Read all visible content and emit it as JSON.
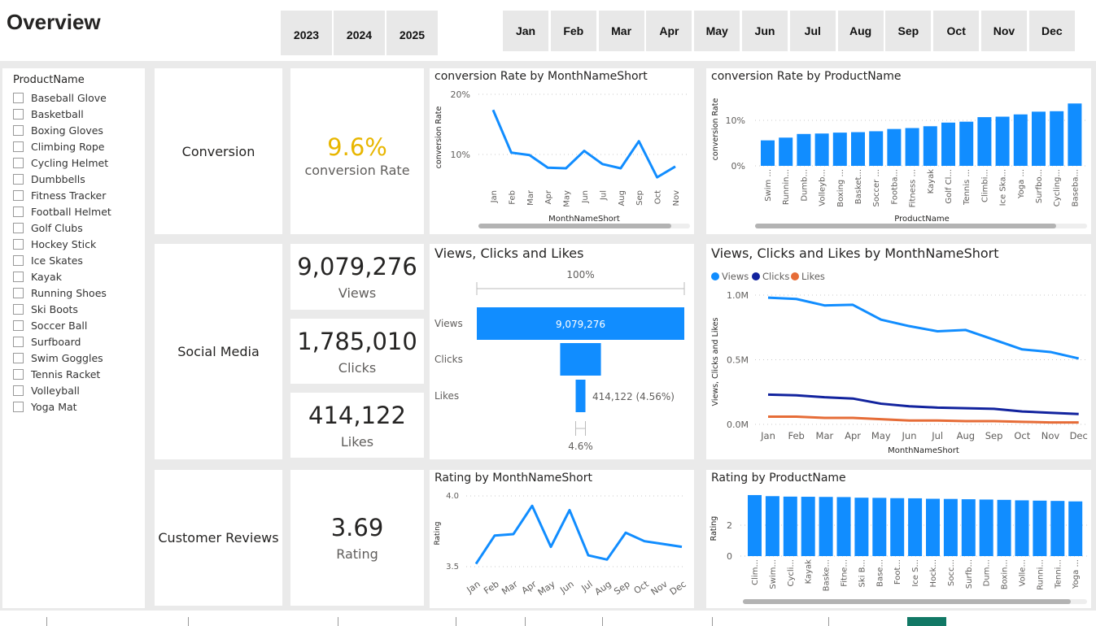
{
  "header": {
    "title": "Overview",
    "years": [
      "2023",
      "2024",
      "2025"
    ],
    "months": [
      "Jan",
      "Feb",
      "Mar",
      "Apr",
      "May",
      "Jun",
      "Jul",
      "Aug",
      "Sep",
      "Oct",
      "Nov",
      "Dec"
    ]
  },
  "slicer": {
    "title": "ProductName",
    "items": [
      "Baseball Glove",
      "Basketball",
      "Boxing Gloves",
      "Climbing Rope",
      "Cycling Helmet",
      "Dumbbells",
      "Fitness Tracker",
      "Football Helmet",
      "Golf Clubs",
      "Hockey Stick",
      "Ice Skates",
      "Kayak",
      "Running Shoes",
      "Ski Boots",
      "Soccer Ball",
      "Surfboard",
      "Swim Goggles",
      "Tennis Racket",
      "Volleyball",
      "Yoga Mat"
    ]
  },
  "sections": {
    "conversion": "Conversion",
    "social": "Social Media",
    "reviews": "Customer Reviews"
  },
  "kpis": {
    "conversion": {
      "value": "9.6%",
      "label": "conversion Rate",
      "color": "#E8B600"
    },
    "views": {
      "value": "9,079,276",
      "label": "Views"
    },
    "clicks": {
      "value": "1,785,010",
      "label": "Clicks"
    },
    "likes": {
      "value": "414,122",
      "label": "Likes"
    },
    "rating": {
      "value": "3.69",
      "label": "Rating"
    }
  },
  "colors": {
    "primary": "#118DFF",
    "clicks": "#12239E",
    "likes": "#E66C37"
  },
  "chart_data": [
    {
      "id": "conv_month",
      "type": "line",
      "title": "conversion Rate by MonthNameShort",
      "xlabel": "MonthNameShort",
      "ylabel": "conversion Rate",
      "yticks": [
        "10%",
        "20%"
      ],
      "ylim": [
        0,
        20
      ],
      "categories": [
        "Jan",
        "Feb",
        "Mar",
        "Apr",
        "May",
        "Jun",
        "Jul",
        "Aug",
        "Sep",
        "Oct",
        "Nov"
      ],
      "values": [
        17.4,
        10.3,
        9.9,
        7.8,
        7.7,
        10.6,
        8.4,
        7.7,
        12.2,
        6.2,
        8.0
      ]
    },
    {
      "id": "conv_product",
      "type": "bar",
      "title": "conversion Rate by ProductName",
      "xlabel": "ProductName",
      "ylabel": "conversion Rate",
      "yticks": [
        "0%",
        "10%"
      ],
      "categories": [
        "Swim ...",
        "Runnin...",
        "Dumb...",
        "Volleyb...",
        "Boxing ...",
        "Basket...",
        "Soccer ...",
        "Footba...",
        "Fitness ...",
        "Kayak",
        "Golf Cl...",
        "Tennis ...",
        "Climbi...",
        "Ice Ska...",
        "Yoga ...",
        "Surfbo...",
        "Cycling...",
        "Baseba..."
      ],
      "values": [
        5.6,
        6.2,
        7.0,
        7.1,
        7.3,
        7.4,
        7.6,
        8.1,
        8.3,
        8.7,
        9.5,
        9.7,
        10.7,
        10.8,
        11.3,
        11.9,
        12.0,
        13.7
      ]
    },
    {
      "id": "funnel",
      "type": "bar",
      "title": "Views, Clicks and Likes",
      "categories": [
        "Views",
        "Clicks",
        "Likes"
      ],
      "values": [
        9079276,
        1785010,
        414122
      ],
      "top_label": "100%",
      "bar_label": "9,079,276",
      "likes_label": "414,122 (4.56%)",
      "bottom_label": "4.6%"
    },
    {
      "id": "vcl_month",
      "type": "line",
      "title": "Views, Clicks and Likes by MonthNameShort",
      "xlabel": "MonthNameShort",
      "ylabel": "Views, Clicks and Likes",
      "yticks": [
        "0.0M",
        "0.5M",
        "1.0M"
      ],
      "ylim": [
        0,
        1000000
      ],
      "legend": "top-left",
      "categories": [
        "Jan",
        "Feb",
        "Mar",
        "Apr",
        "May",
        "Jun",
        "Jul",
        "Aug",
        "Sep",
        "Oct",
        "Nov",
        "Dec"
      ],
      "series": [
        {
          "name": "Views",
          "color": "#118DFF",
          "values": [
            980000,
            970000,
            920000,
            925000,
            810000,
            760000,
            720000,
            730000,
            655000,
            580000,
            560000,
            510000
          ]
        },
        {
          "name": "Clicks",
          "color": "#12239E",
          "values": [
            230000,
            225000,
            210000,
            200000,
            160000,
            140000,
            130000,
            125000,
            120000,
            100000,
            90000,
            80000
          ]
        },
        {
          "name": "Likes",
          "color": "#E66C37",
          "values": [
            60000,
            60000,
            50000,
            50000,
            40000,
            30000,
            30000,
            25000,
            25000,
            20000,
            15000,
            15000
          ]
        }
      ]
    },
    {
      "id": "rating_month",
      "type": "line",
      "title": "Rating by MonthNameShort",
      "ylabel": "Rating",
      "yticks": [
        "3.5",
        "4.0"
      ],
      "ylim": [
        3.5,
        4.0
      ],
      "categories": [
        "Jan",
        "Feb",
        "Mar",
        "Apr",
        "May",
        "Jun",
        "Jul",
        "Aug",
        "Sep",
        "Oct",
        "Nov",
        "Dec"
      ],
      "values": [
        3.52,
        3.72,
        3.73,
        3.93,
        3.64,
        3.9,
        3.58,
        3.55,
        3.74,
        3.68,
        3.66,
        3.64
      ]
    },
    {
      "id": "rating_product",
      "type": "bar",
      "title": "Rating by ProductName",
      "ylabel": "Rating",
      "yticks": [
        "0",
        "2"
      ],
      "categories": [
        "Clim...",
        "Swim...",
        "Cycli...",
        "Kayak",
        "Baske...",
        "Fitne...",
        "Ski B...",
        "Base...",
        "Foot...",
        "Ice S...",
        "Hock...",
        "Socc...",
        "Surfb...",
        "Dum...",
        "Boxin...",
        "Volle...",
        "Runni...",
        "Tenni...",
        "Yoga ..."
      ],
      "values": [
        3.95,
        3.88,
        3.85,
        3.84,
        3.83,
        3.82,
        3.78,
        3.77,
        3.75,
        3.74,
        3.71,
        3.7,
        3.68,
        3.66,
        3.64,
        3.61,
        3.59,
        3.57,
        3.54
      ]
    }
  ]
}
